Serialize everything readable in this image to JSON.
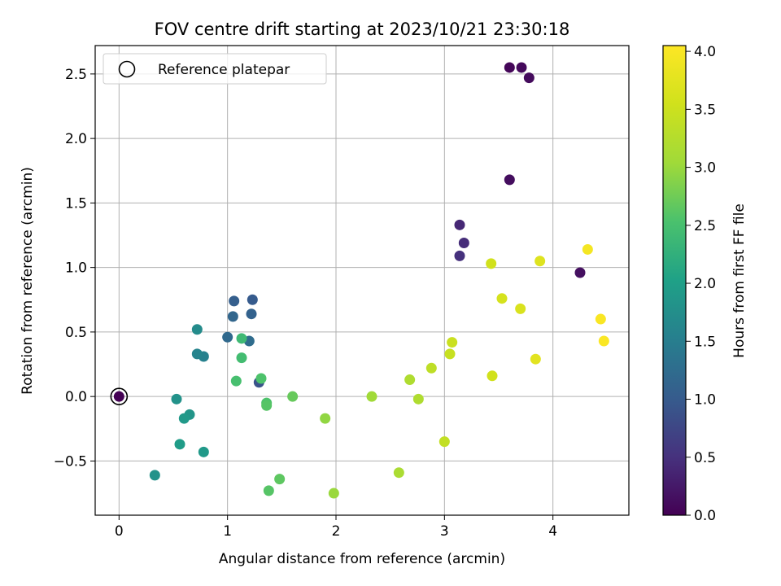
{
  "chart_data": {
    "type": "scatter",
    "title": "FOV centre drift starting at 2023/10/21 23:30:18",
    "xlabel": "Angular distance from reference (arcmin)",
    "ylabel": "Rotation from reference (arcmin)",
    "xlim": [
      -0.22,
      4.7
    ],
    "ylim": [
      -0.92,
      2.72
    ],
    "xticks": [
      0,
      1,
      2,
      3,
      4
    ],
    "xtick_labels": [
      "0",
      "1",
      "2",
      "3",
      "4"
    ],
    "yticks": [
      -0.5,
      0.0,
      0.5,
      1.0,
      1.5,
      2.0,
      2.5
    ],
    "ytick_labels": [
      "−0.5",
      "0.0",
      "0.5",
      "1.0",
      "1.5",
      "2.0",
      "2.5"
    ],
    "grid": true,
    "legend": {
      "position": "top-left",
      "entries": [
        "Reference platepar"
      ]
    },
    "reference_point": {
      "x": 0,
      "y": 0
    },
    "colorbar": {
      "label": "Hours from first FF file",
      "colormap": "viridis",
      "range": [
        0.0,
        4.05
      ],
      "ticks": [
        0.0,
        0.5,
        1.0,
        1.5,
        2.0,
        2.5,
        3.0,
        3.5,
        4.0
      ],
      "tick_labels": [
        "0.0",
        "0.5",
        "1.0",
        "1.5",
        "2.0",
        "2.5",
        "3.0",
        "3.5",
        "4.0"
      ]
    },
    "points": [
      {
        "x": 0.0,
        "y": 0.0,
        "c": 0.0
      },
      {
        "x": 3.6,
        "y": 2.55,
        "c": 0.05
      },
      {
        "x": 3.71,
        "y": 2.55,
        "c": 0.08
      },
      {
        "x": 3.78,
        "y": 2.47,
        "c": 0.1
      },
      {
        "x": 3.6,
        "y": 1.68,
        "c": 0.12
      },
      {
        "x": 4.25,
        "y": 0.96,
        "c": 0.15
      },
      {
        "x": 3.14,
        "y": 1.33,
        "c": 0.4
      },
      {
        "x": 3.18,
        "y": 1.19,
        "c": 0.45
      },
      {
        "x": 3.14,
        "y": 1.09,
        "c": 0.5
      },
      {
        "x": 1.29,
        "y": 0.11,
        "c": 0.9
      },
      {
        "x": 1.23,
        "y": 0.75,
        "c": 1.0
      },
      {
        "x": 1.06,
        "y": 0.74,
        "c": 1.05
      },
      {
        "x": 1.22,
        "y": 0.64,
        "c": 1.1
      },
      {
        "x": 1.05,
        "y": 0.62,
        "c": 1.15
      },
      {
        "x": 1.0,
        "y": 0.46,
        "c": 1.2
      },
      {
        "x": 1.2,
        "y": 0.43,
        "c": 1.25
      },
      {
        "x": 0.78,
        "y": 0.31,
        "c": 1.55
      },
      {
        "x": 0.72,
        "y": 0.33,
        "c": 1.6
      },
      {
        "x": 0.72,
        "y": 0.52,
        "c": 1.7
      },
      {
        "x": 0.53,
        "y": -0.02,
        "c": 1.8
      },
      {
        "x": 0.65,
        "y": -0.14,
        "c": 1.85
      },
      {
        "x": 0.6,
        "y": -0.17,
        "c": 1.9
      },
      {
        "x": 0.56,
        "y": -0.37,
        "c": 1.95
      },
      {
        "x": 0.78,
        "y": -0.43,
        "c": 1.9
      },
      {
        "x": 0.33,
        "y": -0.61,
        "c": 1.8
      },
      {
        "x": 1.13,
        "y": 0.45,
        "c": 2.4
      },
      {
        "x": 1.13,
        "y": 0.3,
        "c": 2.45
      },
      {
        "x": 1.08,
        "y": 0.12,
        "c": 2.5
      },
      {
        "x": 1.31,
        "y": 0.14,
        "c": 2.55
      },
      {
        "x": 1.36,
        "y": -0.05,
        "c": 2.55
      },
      {
        "x": 1.36,
        "y": -0.07,
        "c": 2.6
      },
      {
        "x": 1.38,
        "y": -0.73,
        "c": 2.6
      },
      {
        "x": 1.48,
        "y": -0.64,
        "c": 2.65
      },
      {
        "x": 1.6,
        "y": 0.0,
        "c": 2.7
      },
      {
        "x": 1.9,
        "y": -0.17,
        "c": 2.95
      },
      {
        "x": 1.98,
        "y": -0.75,
        "c": 3.0
      },
      {
        "x": 2.33,
        "y": 0.0,
        "c": 3.05
      },
      {
        "x": 2.58,
        "y": -0.59,
        "c": 3.15
      },
      {
        "x": 2.68,
        "y": 0.13,
        "c": 3.2
      },
      {
        "x": 2.76,
        "y": -0.02,
        "c": 3.2
      },
      {
        "x": 2.88,
        "y": 0.22,
        "c": 3.35
      },
      {
        "x": 3.0,
        "y": -0.35,
        "c": 3.4
      },
      {
        "x": 3.05,
        "y": 0.33,
        "c": 3.45
      },
      {
        "x": 3.07,
        "y": 0.42,
        "c": 3.48
      },
      {
        "x": 3.43,
        "y": 1.03,
        "c": 3.55
      },
      {
        "x": 3.44,
        "y": 0.16,
        "c": 3.55
      },
      {
        "x": 3.53,
        "y": 0.76,
        "c": 3.6
      },
      {
        "x": 3.7,
        "y": 0.68,
        "c": 3.65
      },
      {
        "x": 3.88,
        "y": 1.05,
        "c": 3.7
      },
      {
        "x": 3.84,
        "y": 0.29,
        "c": 3.75
      },
      {
        "x": 4.32,
        "y": 1.14,
        "c": 3.95
      },
      {
        "x": 4.44,
        "y": 0.6,
        "c": 4.0
      },
      {
        "x": 4.47,
        "y": 0.43,
        "c": 4.02
      }
    ]
  }
}
